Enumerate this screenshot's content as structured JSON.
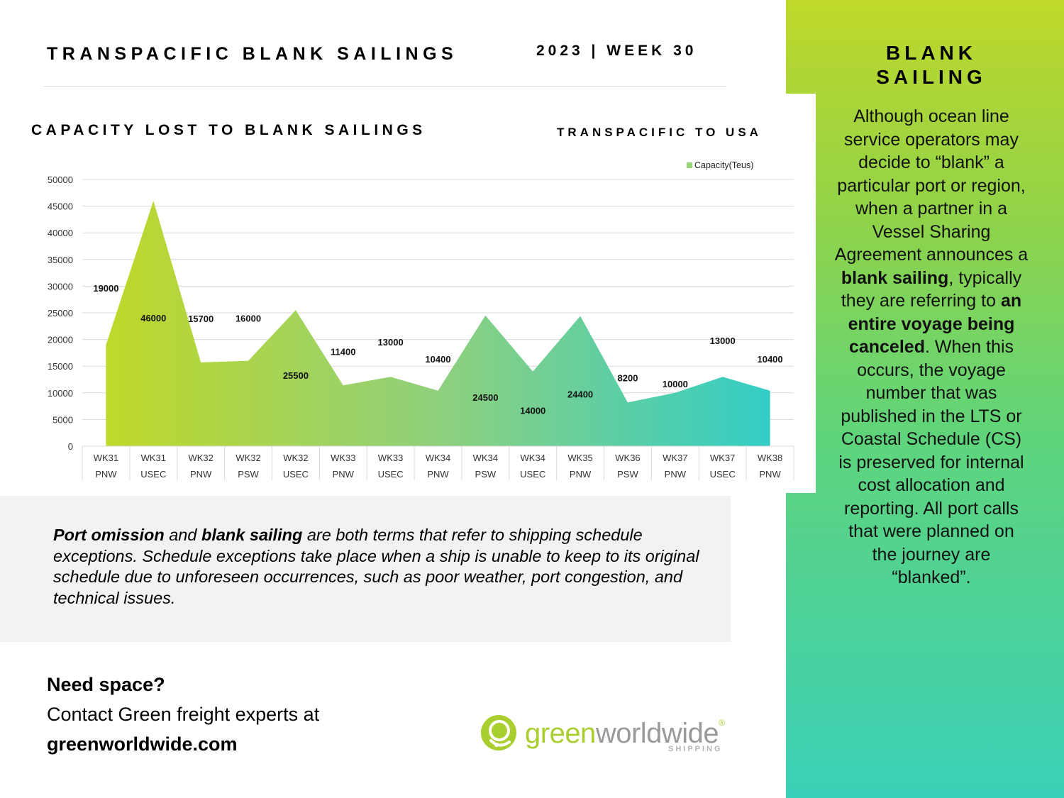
{
  "header": {
    "title": "TRANSPACIFIC BLANK SAILINGS",
    "week": "2023 | WEEK 30"
  },
  "side": {
    "title_line1": "BLANK",
    "title_line2": "SAILING",
    "p1": "Although ocean line service operators may decide to “blank” a particular port or region, when a partner in a Vessel Sharing Agreement announces a ",
    "b1": "blank sailing",
    "p2": ", typically they are referring to ",
    "b2": "an entire voyage being canceled",
    "p3": ". When this occurs, the voyage number that was published in the LTS or Coastal Schedule (CS) is preserved for internal cost allocation and reporting. All port calls that were planned on the journey are “blanked”."
  },
  "note": {
    "b1": "Port omission",
    "t1": " and ",
    "b2": "blank sailing",
    "t2": " are both terms that refer to shipping schedule exceptions. Schedule exceptions take place when a ship is unable to keep to its original schedule due to unforeseen occurrences, such as poor weather, port congestion, and technical issues."
  },
  "cta": {
    "heading": "Need space?",
    "line": "Contact Green freight experts at",
    "site": "greenworldwide.com"
  },
  "logo": {
    "green": "green",
    "gray": "worldwide",
    "reg": "®",
    "tag": "SHIPPING"
  },
  "colors": {
    "lime": "#bfd82a",
    "teal": "#33cdc6"
  },
  "chart_data": {
    "type": "area",
    "title": "CAPACITY LOST TO BLANK SAILINGS",
    "subtitle": "TRANSPACIFIC TO USA",
    "series": [
      {
        "name": "Capacity(Teus)",
        "values": [
          19000,
          46000,
          15700,
          16000,
          25500,
          11400,
          13000,
          10400,
          24500,
          14000,
          24400,
          8200,
          10000,
          13000,
          10400
        ]
      }
    ],
    "categories": [
      {
        "week": "WK31",
        "region": "PNW"
      },
      {
        "week": "WK31",
        "region": "USEC"
      },
      {
        "week": "WK32",
        "region": "PNW"
      },
      {
        "week": "WK32",
        "region": "PSW"
      },
      {
        "week": "WK32",
        "region": "USEC"
      },
      {
        "week": "WK33",
        "region": "PNW"
      },
      {
        "week": "WK33",
        "region": "USEC"
      },
      {
        "week": "WK34",
        "region": "PNW"
      },
      {
        "week": "WK34",
        "region": "PSW"
      },
      {
        "week": "WK34",
        "region": "USEC"
      },
      {
        "week": "WK35",
        "region": "PNW"
      },
      {
        "week": "WK36",
        "region": "PSW"
      },
      {
        "week": "WK37",
        "region": "PNW"
      },
      {
        "week": "WK37",
        "region": "USEC"
      },
      {
        "week": "WK38",
        "region": "PNW"
      }
    ],
    "y_ticks": [
      0,
      5000,
      10000,
      15000,
      20000,
      25000,
      30000,
      35000,
      40000,
      45000,
      50000
    ],
    "ylim": [
      0,
      50000
    ],
    "grid": true,
    "legend": "top-right"
  }
}
